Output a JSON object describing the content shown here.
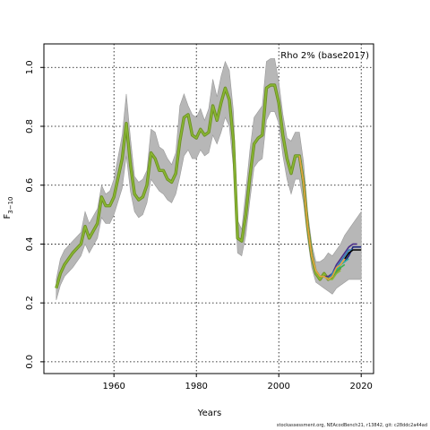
{
  "chart_data": {
    "type": "line",
    "title": "Rho 2% (base2017)",
    "xlabel": "Years",
    "ylabel": "F",
    "ylabel_subscript": "3−10",
    "xlim": [
      1943,
      2023
    ],
    "ylim": [
      -0.04,
      1.08
    ],
    "xticks": [
      1960,
      1980,
      2000,
      2020
    ],
    "yticks": [
      0.0,
      0.2,
      0.4,
      0.6,
      0.8,
      1.0
    ],
    "ytick_labels": [
      "0.0",
      "0.2",
      "0.4",
      "0.6",
      "0.8",
      "1.0"
    ],
    "grid": true,
    "grid_style": "dotted",
    "colors": {
      "band": "#b7b7b7",
      "base_line": "#6b8e23",
      "highlight_line": "#8ab832",
      "peel_colors": [
        "#1a237e",
        "#4a2c8a",
        "#2d7fb8",
        "#2bb2a6",
        "#3cb44b",
        "#8ab832",
        "#e8a33d"
      ],
      "final_line": "#000000"
    },
    "band": {
      "x": [
        1946,
        1947,
        1948,
        1950,
        1952,
        1953,
        1954,
        1956,
        1957,
        1958,
        1959,
        1960,
        1962,
        1963,
        1964,
        1965,
        1966,
        1967,
        1968,
        1969,
        1970,
        1971,
        1972,
        1973,
        1974,
        1975,
        1976,
        1977,
        1978,
        1979,
        1980,
        1981,
        1982,
        1983,
        1984,
        1985,
        1986,
        1987,
        1988,
        1989,
        1990,
        1991,
        1992,
        1993,
        1994,
        1995,
        1996,
        1997,
        1998,
        1999,
        2000,
        2001,
        2002,
        2003,
        2004,
        2005,
        2006,
        2007,
        2008,
        2009,
        2010,
        2011,
        2012,
        2013,
        2014,
        2015,
        2016,
        2017,
        2018,
        2019,
        2020
      ],
      "lower": [
        0.21,
        0.26,
        0.29,
        0.32,
        0.36,
        0.4,
        0.37,
        0.42,
        0.49,
        0.47,
        0.47,
        0.5,
        0.59,
        0.7,
        0.58,
        0.51,
        0.49,
        0.5,
        0.54,
        0.62,
        0.6,
        0.58,
        0.57,
        0.55,
        0.54,
        0.57,
        0.63,
        0.7,
        0.72,
        0.69,
        0.69,
        0.72,
        0.7,
        0.71,
        0.77,
        0.74,
        0.78,
        0.83,
        0.8,
        0.66,
        0.37,
        0.36,
        0.43,
        0.55,
        0.66,
        0.68,
        0.69,
        0.82,
        0.85,
        0.85,
        0.81,
        0.7,
        0.62,
        0.57,
        0.62,
        0.62,
        0.54,
        0.42,
        0.32,
        0.27,
        0.26,
        0.25,
        0.24,
        0.23,
        0.25,
        0.26,
        0.27,
        0.28,
        0.28,
        0.28,
        0.28
      ],
      "upper": [
        0.28,
        0.35,
        0.38,
        0.41,
        0.44,
        0.51,
        0.47,
        0.52,
        0.6,
        0.57,
        0.58,
        0.62,
        0.77,
        0.91,
        0.76,
        0.63,
        0.61,
        0.62,
        0.65,
        0.79,
        0.78,
        0.73,
        0.72,
        0.69,
        0.67,
        0.71,
        0.87,
        0.91,
        0.87,
        0.84,
        0.83,
        0.86,
        0.82,
        0.86,
        0.96,
        0.9,
        0.97,
        1.02,
        0.99,
        0.85,
        0.48,
        0.45,
        0.58,
        0.72,
        0.83,
        0.85,
        0.87,
        1.02,
        1.03,
        1.03,
        0.95,
        0.84,
        0.76,
        0.75,
        0.78,
        0.78,
        0.68,
        0.51,
        0.4,
        0.34,
        0.34,
        0.35,
        0.37,
        0.36,
        0.38,
        0.4,
        0.43,
        0.45,
        0.47,
        0.49,
        0.51
      ]
    },
    "series": [
      {
        "x": [
          1946,
          1947,
          1948,
          1950,
          1952,
          1953,
          1954,
          1956,
          1957,
          1958,
          1959,
          1960,
          1962,
          1963,
          1964,
          1965,
          1966,
          1967,
          1968,
          1969,
          1970,
          1971,
          1972,
          1973,
          1974,
          1975,
          1976,
          1977,
          1978,
          1979,
          1980,
          1981,
          1982,
          1983,
          1984,
          1985,
          1986,
          1987,
          1988,
          1989,
          1990,
          1991,
          1992,
          1993,
          1994,
          1995,
          1996,
          1997,
          1998,
          1999,
          2000,
          2001,
          2002,
          2003,
          2004,
          2005,
          2006,
          2007,
          2008,
          2009,
          2010,
          2011,
          2012,
          2013,
          2014,
          2015
        ],
        "values": [
          0.25,
          0.3,
          0.33,
          0.37,
          0.4,
          0.46,
          0.42,
          0.47,
          0.56,
          0.53,
          0.53,
          0.56,
          0.69,
          0.81,
          0.67,
          0.57,
          0.55,
          0.56,
          0.6,
          0.71,
          0.69,
          0.65,
          0.65,
          0.62,
          0.61,
          0.64,
          0.75,
          0.83,
          0.84,
          0.77,
          0.76,
          0.79,
          0.77,
          0.78,
          0.87,
          0.82,
          0.88,
          0.93,
          0.89,
          0.75,
          0.42,
          0.41,
          0.5,
          0.63,
          0.74,
          0.76,
          0.77,
          0.93,
          0.94,
          0.94,
          0.88,
          0.77,
          0.69,
          0.64,
          0.7,
          0.7,
          0.61,
          0.46,
          0.36,
          0.3,
          0.28,
          0.3,
          0.28,
          0.29,
          0.31,
          0.32
        ]
      },
      {
        "x": [
          2005,
          2006,
          2007,
          2008,
          2009,
          2010,
          2011,
          2012,
          2013,
          2014,
          2015,
          2016,
          2017,
          2018,
          2019,
          2020
        ],
        "values": [
          0.7,
          0.61,
          0.46,
          0.36,
          0.31,
          0.29,
          0.29,
          0.28,
          0.29,
          0.31,
          0.33,
          0.34,
          0.36,
          0.39,
          0.39,
          0.39
        ]
      },
      {
        "x": [
          2005,
          2006,
          2007,
          2008,
          2009,
          2010,
          2011,
          2012,
          2013,
          2014,
          2015,
          2016,
          2017,
          2018,
          2019
        ],
        "values": [
          0.7,
          0.61,
          0.46,
          0.36,
          0.31,
          0.29,
          0.29,
          0.29,
          0.3,
          0.33,
          0.35,
          0.37,
          0.39,
          0.4,
          0.4
        ]
      },
      {
        "x": [
          2005,
          2006,
          2007,
          2008,
          2009,
          2010,
          2011,
          2012,
          2013,
          2014,
          2015,
          2016,
          2017,
          2018
        ],
        "values": [
          0.7,
          0.61,
          0.46,
          0.36,
          0.31,
          0.29,
          0.29,
          0.28,
          0.3,
          0.32,
          0.34,
          0.36,
          0.38,
          0.38
        ]
      },
      {
        "x": [
          2005,
          2006,
          2007,
          2008,
          2009,
          2010,
          2011,
          2012,
          2013,
          2014,
          2015,
          2016,
          2017
        ],
        "values": [
          0.7,
          0.61,
          0.46,
          0.36,
          0.31,
          0.29,
          0.29,
          0.28,
          0.29,
          0.31,
          0.33,
          0.34,
          0.35
        ]
      },
      {
        "x": [
          2005,
          2006,
          2007,
          2008,
          2009,
          2010,
          2011,
          2012,
          2013,
          2014,
          2015,
          2016
        ],
        "values": [
          0.7,
          0.61,
          0.46,
          0.36,
          0.31,
          0.29,
          0.29,
          0.28,
          0.29,
          0.31,
          0.32,
          0.33
        ]
      },
      {
        "x": [
          2005,
          2006,
          2007,
          2008,
          2009,
          2010,
          2011,
          2012,
          2013,
          2014,
          2015
        ],
        "values": [
          0.7,
          0.61,
          0.46,
          0.36,
          0.31,
          0.29,
          0.29,
          0.28,
          0.28,
          0.3,
          0.31
        ]
      },
      {
        "x": [
          2005,
          2006,
          2007,
          2008,
          2009,
          2010,
          2011,
          2012,
          2013,
          2014,
          2015,
          2016
        ],
        "values": [
          0.7,
          0.61,
          0.46,
          0.36,
          0.31,
          0.29,
          0.29,
          0.28,
          0.29,
          0.32,
          0.33,
          0.35
        ]
      },
      {
        "x": [
          2016,
          2017,
          2018,
          2019,
          2020
        ],
        "values": [
          0.35,
          0.37,
          0.38,
          0.38,
          0.38
        ]
      }
    ]
  },
  "footer_text": "stockassessment.org, NEAcodBench21, r13842, git: c28ddc2a44ad"
}
